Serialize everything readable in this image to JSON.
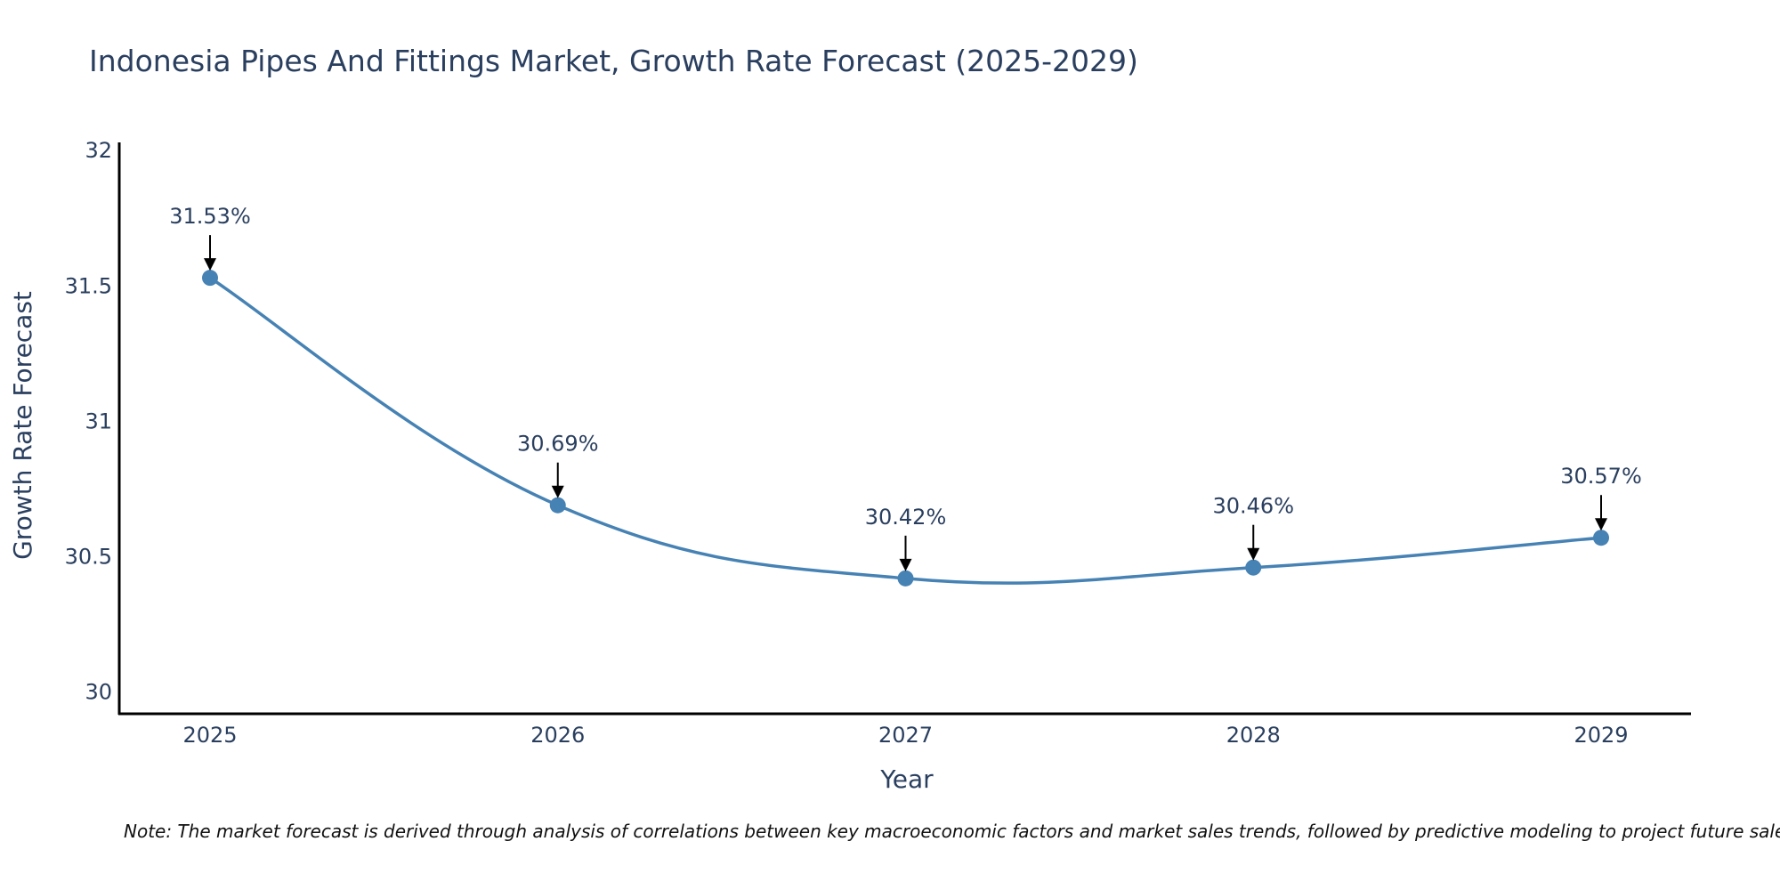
{
  "chart_data": {
    "type": "line",
    "title": "Indonesia Pipes And Fittings Market, Growth Rate Forecast (2025-2029)",
    "xlabel": "Year",
    "ylabel": "Growth Rate Forecast",
    "categories": [
      "2025",
      "2026",
      "2027",
      "2028",
      "2029"
    ],
    "series": [
      {
        "name": "Growth Rate Forecast",
        "values": [
          31.53,
          30.69,
          30.42,
          30.46,
          30.57
        ]
      }
    ],
    "data_labels": [
      "31.53%",
      "30.69%",
      "30.42%",
      "30.46%",
      "30.57%"
    ],
    "yticks": [
      30,
      30.5,
      31,
      31.5,
      32
    ],
    "ytick_labels": [
      "30",
      "30.5",
      "31",
      "31.5",
      "32"
    ],
    "ylim": [
      29.92,
      32.03
    ],
    "line_shape": "spline",
    "color": "#4682b4",
    "grid": false,
    "note": "Note: The market forecast is derived through analysis of correlations between key macroeconomic factors and market sales trends, followed by predictive modeling to project future sales."
  }
}
